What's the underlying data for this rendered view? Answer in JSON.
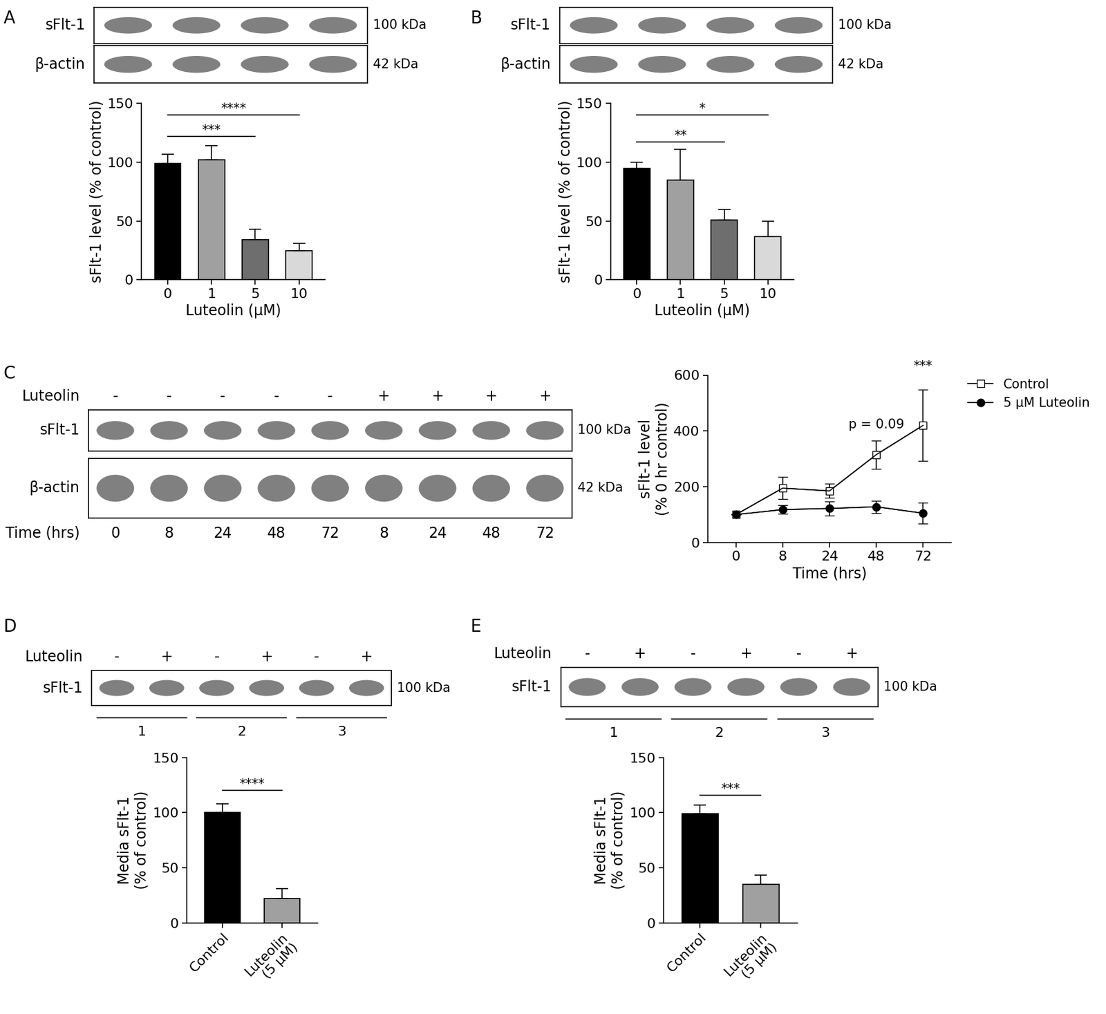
{
  "chart_data": [
    {
      "panel": "A",
      "type": "bar",
      "categories": [
        "0",
        "1",
        "5",
        "10"
      ],
      "values": [
        99,
        102,
        34,
        25
      ],
      "errors": [
        8,
        12,
        9,
        6
      ],
      "colors": [
        "#000000",
        "#a0a0a0",
        "#6e6e6e",
        "#d9d9d9"
      ],
      "x_label": "Luteolin (µM)",
      "y_label": "sFlt-1 level (% of control)",
      "ylim": [
        0,
        150
      ],
      "yticks": [
        0,
        50,
        100,
        150
      ],
      "significance": [
        {
          "from": "0",
          "to": "10",
          "y": 140,
          "label": "****"
        },
        {
          "from": "0",
          "to": "5",
          "y": 122,
          "label": "***"
        }
      ],
      "blot": {
        "rows": [
          {
            "label": "sFlt-1",
            "kda": "100 kDa"
          },
          {
            "label": "β-actin",
            "kda": "42 kDa"
          }
        ]
      }
    },
    {
      "panel": "B",
      "type": "bar",
      "categories": [
        "0",
        "1",
        "5",
        "10"
      ],
      "values": [
        95,
        85,
        51,
        37
      ],
      "errors": [
        5,
        26,
        9,
        13
      ],
      "colors": [
        "#000000",
        "#a0a0a0",
        "#6e6e6e",
        "#d9d9d9"
      ],
      "x_label": "Luteolin (µM)",
      "y_label": "sFlt-1 level (% of control)",
      "ylim": [
        0,
        150
      ],
      "yticks": [
        0,
        50,
        100,
        150
      ],
      "significance": [
        {
          "from": "0",
          "to": "10",
          "y": 140,
          "label": "*"
        },
        {
          "from": "0",
          "to": "5",
          "y": 117,
          "label": "**"
        }
      ],
      "blot": {
        "rows": [
          {
            "label": "sFlt-1",
            "kda": "100 kDa"
          },
          {
            "label": "β-actin",
            "kda": "42 kDa"
          }
        ]
      }
    },
    {
      "panel": "C",
      "type": "line",
      "categories": [
        "0",
        "8",
        "24",
        "48",
        "72"
      ],
      "x_label": "Time (hrs)",
      "y_label": "sFlt-1 level\n(% 0 hr control)",
      "ylim": [
        0,
        600
      ],
      "yticks": [
        0,
        200,
        400,
        600
      ],
      "series": [
        {
          "name": "Control",
          "color": "#000000",
          "marker": "square",
          "values": [
            100,
            195,
            185,
            315,
            420
          ],
          "errors": [
            0,
            40,
            25,
            50,
            128
          ]
        },
        {
          "name": "5 µM Luteolin",
          "color": "#000000",
          "marker": "circle",
          "values": [
            100,
            118,
            122,
            128,
            105
          ],
          "errors": [
            0,
            15,
            25,
            22,
            38
          ]
        }
      ],
      "legend": "upper left",
      "annotations": [
        {
          "text": "p = 0.09",
          "x": "48",
          "y": 400
        },
        {
          "text": "***",
          "x": "72",
          "y": 610
        }
      ],
      "blot": {
        "rows": [
          {
            "label": "sFlt-1",
            "kda": "100 kDa"
          },
          {
            "label": "β-actin",
            "kda": "42 kDa"
          }
        ],
        "treatment_label": "Luteolin",
        "treatment": [
          "-",
          "-",
          "-",
          "-",
          "-",
          "+",
          "+",
          "+",
          "+"
        ],
        "time_label": "Time (hrs)",
        "times": [
          "0",
          "8",
          "24",
          "48",
          "72",
          "8",
          "24",
          "48",
          "72"
        ]
      }
    },
    {
      "panel": "D",
      "type": "bar",
      "categories": [
        "Control",
        "Luteolin\n(5 µM)"
      ],
      "values": [
        100,
        22
      ],
      "errors": [
        8,
        9
      ],
      "colors": [
        "#000000",
        "#a0a0a0"
      ],
      "y_label": "Media sFlt-1\n(% of control)",
      "ylim": [
        0,
        150
      ],
      "yticks": [
        0,
        50,
        100,
        150
      ],
      "significance": [
        {
          "from": "Control",
          "to": "Luteolin\n(5 µM)",
          "y": 120,
          "label": "****"
        }
      ],
      "blot": {
        "rows": [
          {
            "label": "sFlt-1",
            "kda": "100 kDa"
          }
        ],
        "treatment_label": "Luteolin",
        "treatment": [
          "-",
          "+",
          "-",
          "+",
          "-",
          "+"
        ],
        "groups": [
          "1",
          "2",
          "3"
        ]
      }
    },
    {
      "panel": "E",
      "type": "bar",
      "categories": [
        "Control",
        "Luteolin\n(5 µM)"
      ],
      "values": [
        99,
        35
      ],
      "errors": [
        8,
        8
      ],
      "colors": [
        "#000000",
        "#a0a0a0"
      ],
      "y_label": "Media sFlt-1\n(% of control)",
      "ylim": [
        0,
        150
      ],
      "yticks": [
        0,
        50,
        100,
        150
      ],
      "significance": [
        {
          "from": "Control",
          "to": "Luteolin\n(5 µM)",
          "y": 116,
          "label": "***"
        }
      ],
      "blot": {
        "rows": [
          {
            "label": "sFlt-1",
            "kda": "100 kDa"
          }
        ],
        "treatment_label": "Luteolin",
        "treatment": [
          "-",
          "+",
          "-",
          "+",
          "-",
          "+"
        ],
        "groups": [
          "1",
          "2",
          "3"
        ]
      }
    }
  ]
}
